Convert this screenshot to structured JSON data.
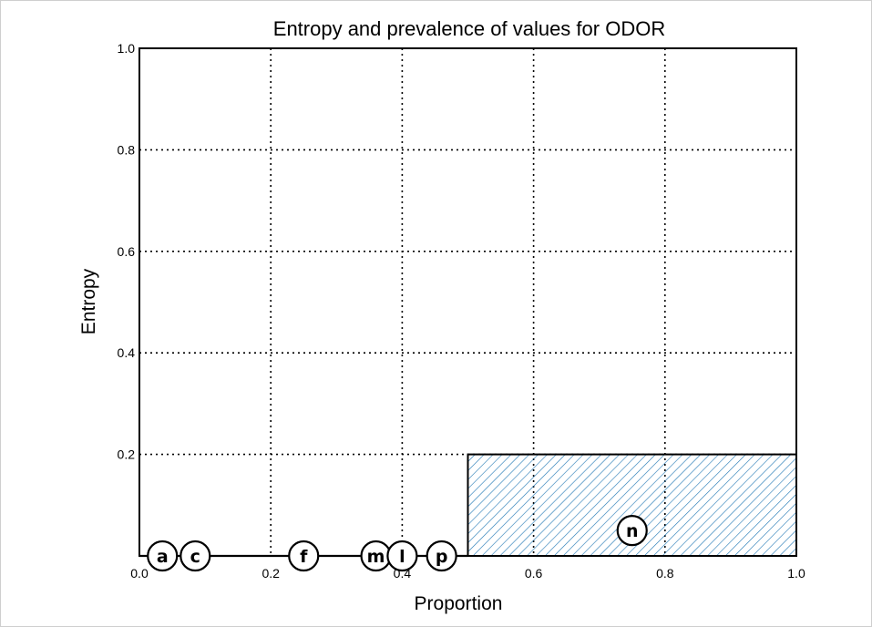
{
  "chart_data": {
    "type": "scatter",
    "title": "Entropy and prevalence of values for ODOR",
    "xlabel": "Proportion",
    "ylabel": "Entropy",
    "xlim": [
      0.0,
      1.0
    ],
    "ylim": [
      0.0,
      1.0
    ],
    "x_ticks": [
      "0.0",
      "0.2",
      "0.4",
      "0.6",
      "0.8",
      "1.0"
    ],
    "y_ticks": [
      "0.2",
      "0.4",
      "0.6",
      "0.8",
      "1.0"
    ],
    "grid": true,
    "baseline": {
      "y": 0.0,
      "x_start": 0.0,
      "x_end": 0.5
    },
    "hatched_region": {
      "x_start": 0.5,
      "x_end": 1.0,
      "y_start": 0.0,
      "y_end": 0.2,
      "color": "#1f77b4"
    },
    "points": [
      {
        "label": "a",
        "x": 0.035,
        "y": 0.0
      },
      {
        "label": "c",
        "x": 0.085,
        "y": 0.0
      },
      {
        "label": "f",
        "x": 0.25,
        "y": 0.0
      },
      {
        "label": "m",
        "x": 0.36,
        "y": 0.0
      },
      {
        "label": "l",
        "x": 0.4,
        "y": 0.0
      },
      {
        "label": "p",
        "x": 0.46,
        "y": 0.0
      },
      {
        "label": "n",
        "x": 0.75,
        "y": 0.05
      }
    ]
  }
}
